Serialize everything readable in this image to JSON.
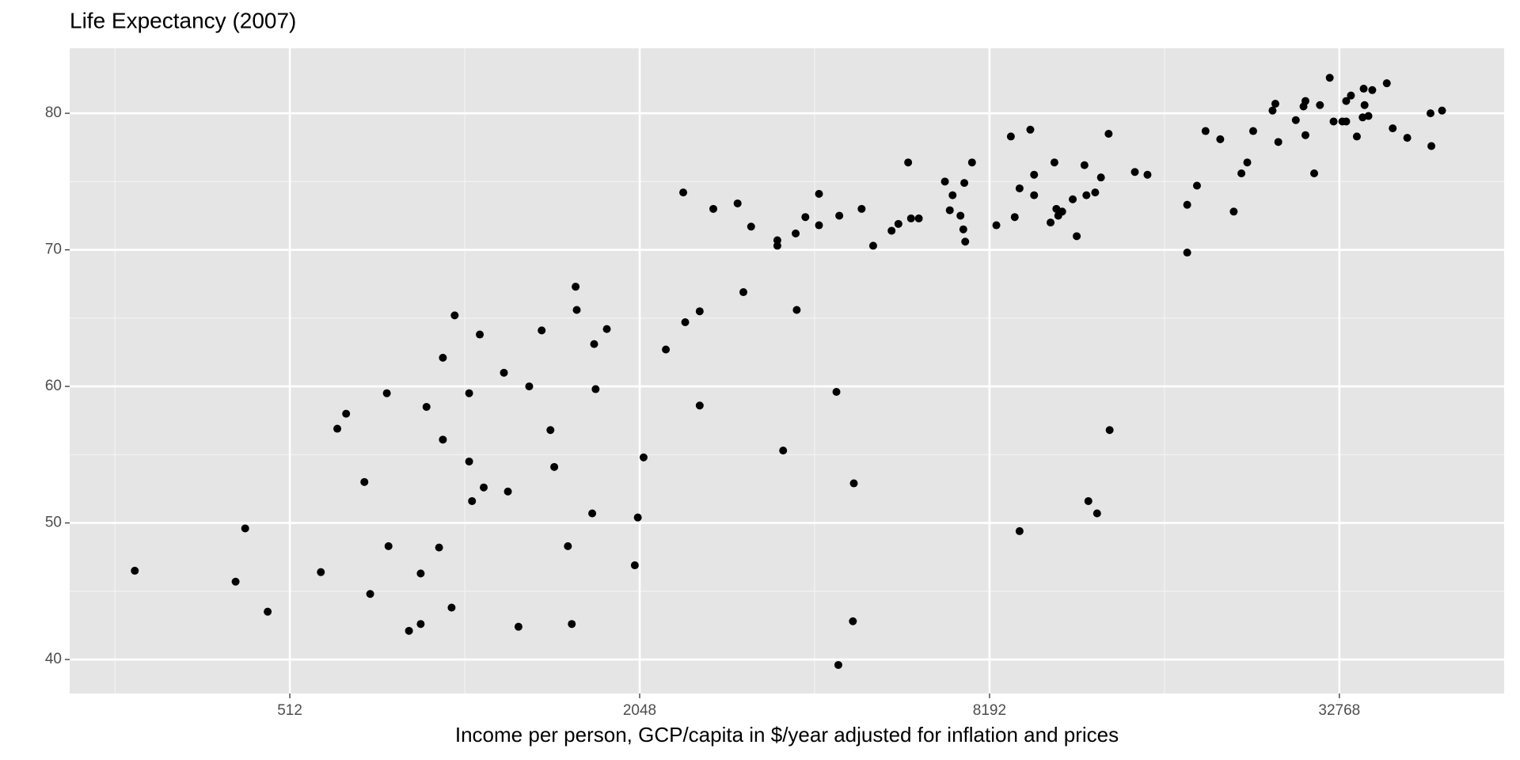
{
  "chart_data": {
    "type": "scatter",
    "title": "Life Expectancy (2007)",
    "x_label": "Income per person, GCP/capita in $/year adjusted for inflation and prices",
    "x_scale": "log2",
    "xlim": [
      214,
      62956
    ],
    "xticks": [
      512,
      2048,
      8192,
      32768
    ],
    "ylim": [
      37.51,
      84.76
    ],
    "yticks": [
      40,
      50,
      60,
      70,
      80
    ],
    "grid": true,
    "minor_grid": true,
    "color": "#000000",
    "x": [
      277,
      413,
      429,
      469,
      579,
      618,
      640,
      688,
      704,
      752,
      757,
      821,
      860,
      860,
      880,
      925,
      939,
      939,
      972,
      984,
      1042,
      1042,
      1054,
      1087,
      1104,
      1196,
      1215,
      1267,
      1322,
      1389,
      1438,
      1460,
      1541,
      1565,
      1589,
      1596,
      1697,
      1710,
      1720,
      1798,
      2009,
      2033,
      2080,
      2272,
      2434,
      2453,
      2598,
      2598,
      2742,
      3019,
      3089,
      3185,
      3534,
      3534,
      3616,
      3800,
      3816,
      3949,
      4168,
      4168,
      4466,
      4500,
      4517,
      4767,
      4785,
      4935,
      5166,
      5557,
      5709,
      5934,
      6002,
      6190,
      6865,
      6999,
      7077,
      7301,
      7384,
      7413,
      7440,
      7643,
      8417,
      8915,
      9053,
      9228,
      9228,
      9629,
      9775,
      9775,
      10434,
      10595,
      10676,
      10757,
      10925,
      11392,
      11574,
      11934,
      12026,
      12119,
      12452,
      12546,
      12739,
      13133,
      13185,
      14572,
      15319,
      17930,
      17930,
      18637,
      19282,
      20439,
      21560,
      22226,
      22748,
      23286,
      25144,
      25426,
      25723,
      27571,
      28426,
      28646,
      28646,
      29655,
      30341,
      31539,
      32026,
      33157,
      33664,
      33664,
      34304,
      35118,
      35932,
      36081,
      36209,
      36767,
      37330,
      39542,
      40479,
      42880,
      47017,
      47181,
      49219
    ],
    "values": [
      46.5,
      45.7,
      49.6,
      43.5,
      46.4,
      56.9,
      58.0,
      53.0,
      44.8,
      59.5,
      48.3,
      42.1,
      46.3,
      42.6,
      58.5,
      48.2,
      62.1,
      56.1,
      43.8,
      65.2,
      59.5,
      54.5,
      51.6,
      63.8,
      52.6,
      61.0,
      52.3,
      42.4,
      60.0,
      64.1,
      56.8,
      54.1,
      48.3,
      42.6,
      67.3,
      65.6,
      50.7,
      63.1,
      59.8,
      64.2,
      46.9,
      50.4,
      54.8,
      62.7,
      74.2,
      64.7,
      65.5,
      58.6,
      73.0,
      73.4,
      66.9,
      71.7,
      70.7,
      70.3,
      55.3,
      71.2,
      65.6,
      72.4,
      74.1,
      71.8,
      59.6,
      39.6,
      72.5,
      42.8,
      52.9,
      73.0,
      70.3,
      71.4,
      71.9,
      76.4,
      72.3,
      72.3,
      75.0,
      72.9,
      74.0,
      72.5,
      71.5,
      74.9,
      70.6,
      76.4,
      71.8,
      78.3,
      72.4,
      49.4,
      74.5,
      78.8,
      75.5,
      74.0,
      72.0,
      76.4,
      73.0,
      72.5,
      72.8,
      73.7,
      71.0,
      76.2,
      74.0,
      51.6,
      74.2,
      50.7,
      75.3,
      78.5,
      56.8,
      75.7,
      75.5,
      69.8,
      73.3,
      74.7,
      78.7,
      78.1,
      72.8,
      75.6,
      76.4,
      78.7,
      80.2,
      80.7,
      77.9,
      79.5,
      80.5,
      80.9,
      78.4,
      75.6,
      80.6,
      82.6,
      79.4,
      79.4,
      79.4,
      80.9,
      81.3,
      78.3,
      79.7,
      81.8,
      80.6,
      79.8,
      81.7,
      82.2,
      78.9,
      78.2,
      80.0,
      77.6,
      80.2
    ]
  }
}
